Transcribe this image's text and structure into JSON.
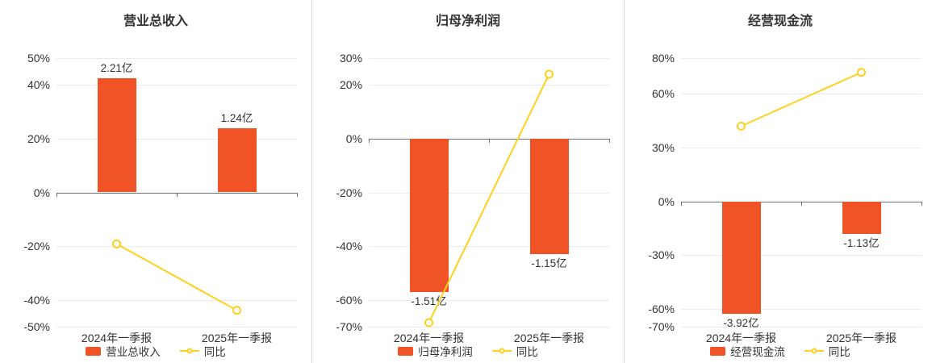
{
  "theme": {
    "background": "#ffffff",
    "bar_color": "#f05326",
    "line_color": "#ffd11e",
    "axis_line_color": "#707070",
    "grid_line_color": "#ebebeb",
    "text_color": "#333333",
    "panel_divider_color": "#dcdcdc"
  },
  "chart_data": [
    {
      "type": "bar",
      "title": "营业总收入",
      "categories": [
        "2024年一季报",
        "2025年一季报"
      ],
      "bar_series": {
        "name": "营业总收入",
        "value_labels": [
          "2.21亿",
          "1.24亿"
        ],
        "values_axis_pct": [
          42.5,
          24
        ]
      },
      "line_series": {
        "name": "同比",
        "values_pct": [
          -19.2,
          -43.9
        ]
      },
      "ylim": [
        -50,
        50
      ],
      "yticks": [
        50,
        40,
        20,
        0,
        -20,
        -40,
        -50
      ],
      "ytick_suffix": "%",
      "legend": [
        "营业总收入",
        "同比"
      ],
      "legend_position": "bottom",
      "grid": true
    },
    {
      "type": "bar",
      "title": "归母净利润",
      "categories": [
        "2024年一季报",
        "2025年一季报"
      ],
      "bar_series": {
        "name": "归母净利润",
        "value_labels": [
          "-1.51亿",
          "-1.15亿"
        ],
        "values_axis_pct": [
          -57,
          -43
        ]
      },
      "line_series": {
        "name": "同比",
        "values_pct": [
          -68.5,
          24
        ]
      },
      "ylim": [
        -70,
        30
      ],
      "yticks": [
        30,
        20,
        0,
        -20,
        -40,
        -60,
        -70
      ],
      "ytick_suffix": "%",
      "legend": [
        "归母净利润",
        "同比"
      ],
      "legend_position": "bottom",
      "grid": true
    },
    {
      "type": "bar",
      "title": "经营现金流",
      "categories": [
        "2024年一季报",
        "2025年一季报"
      ],
      "bar_series": {
        "name": "经营现金流",
        "value_labels": [
          "-3.92亿",
          "-1.13亿"
        ],
        "values_axis_pct": [
          -63,
          -18.2
        ]
      },
      "line_series": {
        "name": "同比",
        "values_pct": [
          42,
          72
        ]
      },
      "ylim": [
        -70,
        80
      ],
      "yticks": [
        80,
        60,
        30,
        0,
        -30,
        -60,
        -70
      ],
      "ytick_suffix": "%",
      "legend": [
        "经营现金流",
        "同比"
      ],
      "legend_position": "bottom",
      "grid": true
    }
  ]
}
